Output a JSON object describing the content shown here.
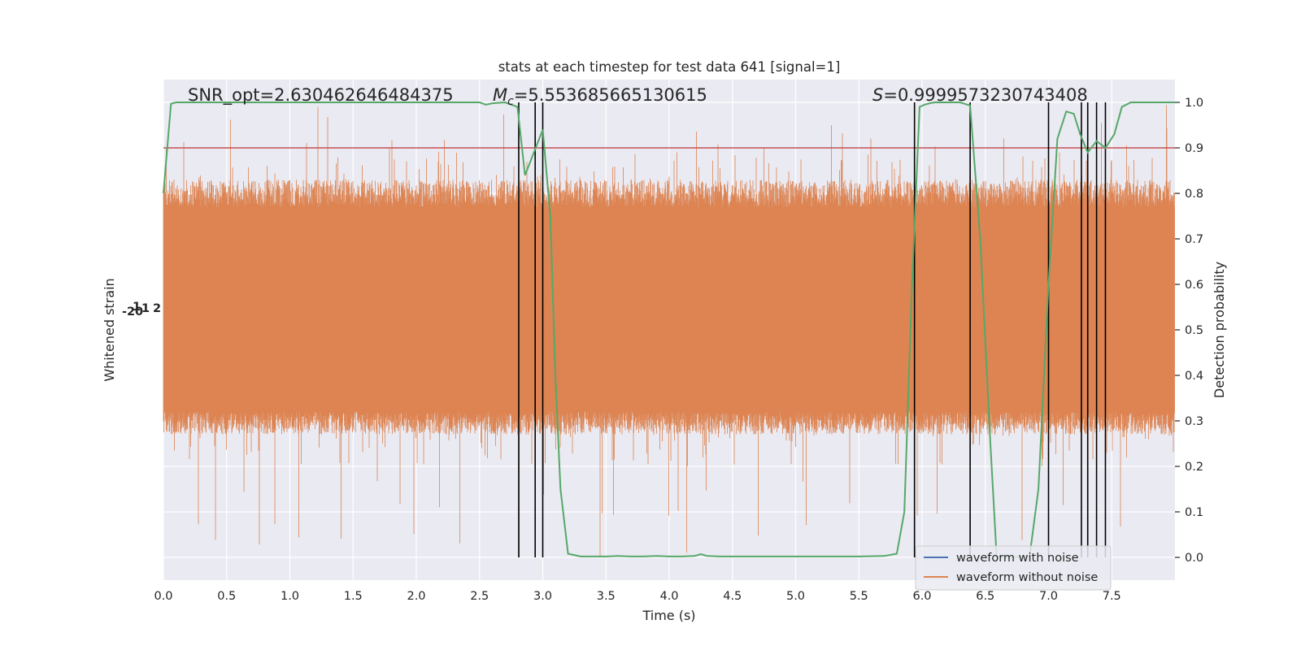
{
  "chart_data": {
    "type": "line",
    "title": "stats at each timestep for test data 641 [signal=1]",
    "xlabel": "Time (s)",
    "ylabel_left": "Whitened strain",
    "ylabel_right": "Detection probability",
    "xlim": [
      0,
      8.0
    ],
    "ylim_right": [
      -0.05,
      1.05
    ],
    "x_ticks": [
      0.0,
      0.5,
      1.0,
      1.5,
      2.0,
      2.5,
      3.0,
      3.5,
      4.0,
      4.5,
      5.0,
      5.5,
      6.0,
      6.5,
      7.0,
      7.5
    ],
    "x_tick_labels": [
      "0.0",
      "0.5",
      "1.0",
      "1.5",
      "2.0",
      "2.5",
      "3.0",
      "3.5",
      "4.0",
      "4.5",
      "5.0",
      "5.5",
      "6.0",
      "6.5",
      "7.0",
      "7.5"
    ],
    "y_right_ticks": [
      0.0,
      0.1,
      0.2,
      0.3,
      0.4,
      0.5,
      0.6,
      0.7,
      0.8,
      0.9,
      1.0
    ],
    "y_right_tick_labels": [
      "0.0",
      "0.1",
      "0.2",
      "0.3",
      "0.4",
      "0.5",
      "0.6",
      "0.7",
      "0.8",
      "0.9",
      "1.0"
    ],
    "grid": true,
    "annotations": {
      "snr_text": "SNR_opt=2.630462646484375",
      "mc_symbol": "M",
      "mc_subscript": "c",
      "mc_value": "=5.553685665130615",
      "s_symbol": "S",
      "s_value": "=0.9999573230743408"
    },
    "threshold": 0.9,
    "detection_probability": {
      "x": [
        0.0,
        0.06,
        0.1,
        0.2,
        0.5,
        1.0,
        1.5,
        2.0,
        2.5,
        2.55,
        2.6,
        2.7,
        2.8,
        2.86,
        2.93,
        3.0,
        3.06,
        3.1,
        3.14,
        3.2,
        3.3,
        3.5,
        3.6,
        3.7,
        3.8,
        3.9,
        4.0,
        4.1,
        4.2,
        4.25,
        4.3,
        4.4,
        4.5,
        4.8,
        5.0,
        5.5,
        5.7,
        5.8,
        5.86,
        5.92,
        5.98,
        6.02,
        6.06,
        6.1,
        6.15,
        6.3,
        6.38,
        6.46,
        6.54,
        6.59,
        6.63,
        6.7,
        6.78,
        6.85,
        6.92,
        7.0,
        7.07,
        7.14,
        7.2,
        7.25,
        7.31,
        7.38,
        7.45,
        7.52,
        7.58,
        7.65,
        7.75,
        7.9,
        8.0
      ],
      "y": [
        0.8,
        0.997,
        1.0,
        1.0,
        1.0,
        1.0,
        1.0,
        1.0,
        1.0,
        0.995,
        0.998,
        1.0,
        0.99,
        0.84,
        0.89,
        0.94,
        0.75,
        0.4,
        0.15,
        0.008,
        0.002,
        0.002,
        0.003,
        0.002,
        0.002,
        0.003,
        0.002,
        0.002,
        0.003,
        0.007,
        0.003,
        0.002,
        0.002,
        0.002,
        0.002,
        0.002,
        0.003,
        0.008,
        0.1,
        0.6,
        0.99,
        0.995,
        0.998,
        1.0,
        1.0,
        1.0,
        0.993,
        0.7,
        0.25,
        0.002,
        0.001,
        0.001,
        0.001,
        0.002,
        0.15,
        0.6,
        0.92,
        0.98,
        0.975,
        0.93,
        0.89,
        0.915,
        0.9,
        0.93,
        0.99,
        1.0,
        1.0,
        1.0,
        1.0
      ],
      "color": "#55a868"
    },
    "trigger_lines_x": [
      2.81,
      2.94,
      3.0,
      5.94,
      6.38,
      7.0,
      7.26,
      7.31,
      7.38,
      7.45
    ],
    "strain_noise_band": {
      "seed": 641,
      "base_low": 0.31,
      "base_high": 0.79,
      "spike_max": 0.995,
      "spike_min": 0.0,
      "color": "#dd8452"
    },
    "series": [
      {
        "name": "waveform with noise",
        "color": "#4c72b0"
      },
      {
        "name": "waveform without noise",
        "color": "#dd8452"
      }
    ],
    "left_axis_tick_labels": [
      "-2",
      "1",
      "0",
      "1",
      "2"
    ],
    "legend_position": "lower-right",
    "colors": {
      "plot_background": "#eaeaf2",
      "grid": "#ffffff",
      "threshold_line": "#c44e52",
      "trigger_line": "#000000"
    }
  }
}
